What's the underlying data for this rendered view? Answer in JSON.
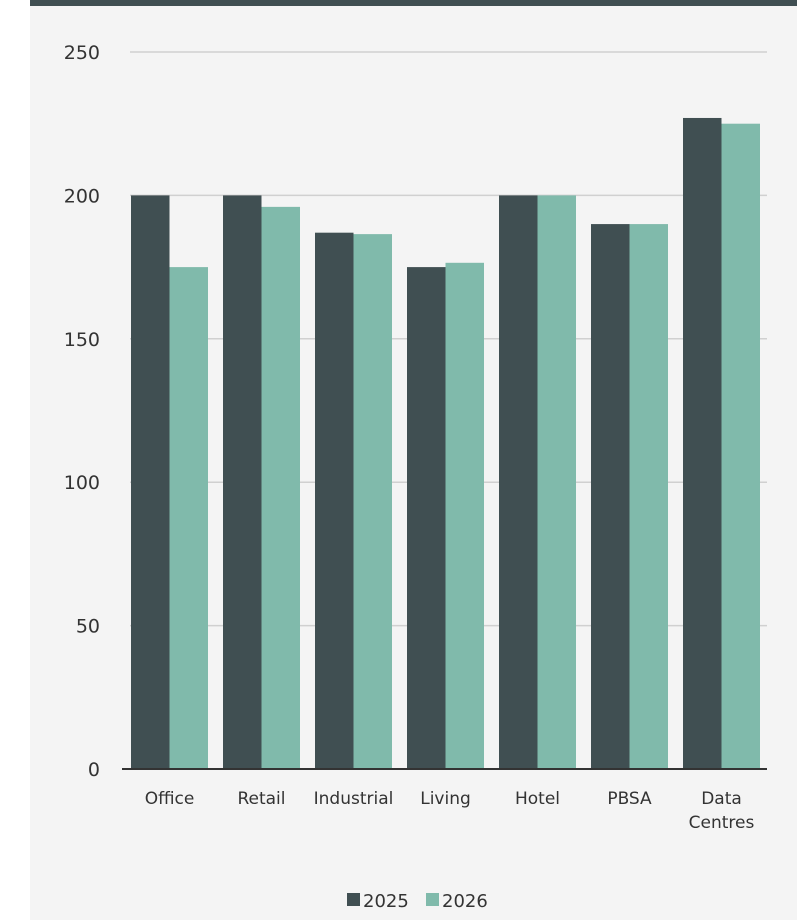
{
  "chart_data": {
    "type": "bar",
    "categories": [
      [
        "Office"
      ],
      [
        "Retail"
      ],
      [
        "Industrial"
      ],
      [
        "Living"
      ],
      [
        "Hotel"
      ],
      [
        "PBSA"
      ],
      [
        "Data",
        "Centres"
      ]
    ],
    "series": [
      {
        "name": "2025",
        "values": [
          200,
          200,
          187,
          175,
          200,
          190,
          227
        ],
        "color": "#404f52"
      },
      {
        "name": "2026",
        "values": [
          175,
          196,
          186.5,
          176.5,
          200,
          190,
          225
        ],
        "color": "#80baab"
      }
    ],
    "yticks": [
      "0",
      "50",
      "100",
      "150",
      "200",
      "250"
    ],
    "ylim": [
      0,
      250
    ],
    "grid": true,
    "legend": "bottom-center",
    "title": "",
    "xlabel": "",
    "ylabel": ""
  },
  "colors": {
    "top_border": "#404f52",
    "panel_background": "#f4f4f4",
    "gridline": "#d0d0d0",
    "axis": "#333333"
  }
}
